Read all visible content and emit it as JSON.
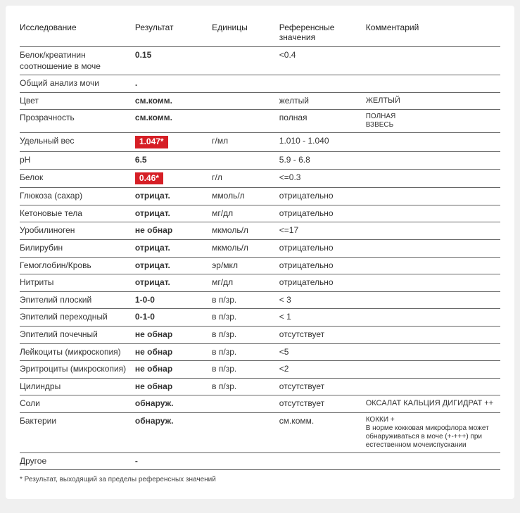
{
  "colors": {
    "highlight_bg": "#d61f26",
    "highlight_fg": "#ffffff",
    "border": "#666666"
  },
  "headers": {
    "name": "Исследование",
    "result": "Результат",
    "units": "Единицы",
    "ref": "Референсные значения",
    "comment": "Комментарий"
  },
  "footnote": "* Результат, выходящий за пределы референсных значений",
  "rows": [
    {
      "name": "Белок/креатинин соотношение в моче",
      "result": "0.15",
      "units": "",
      "ref": "<0.4",
      "comment": ""
    },
    {
      "name": "Общий анализ мочи",
      "result": ".",
      "units": "",
      "ref": "",
      "comment": ""
    },
    {
      "name": "Цвет",
      "result": "см.комм.",
      "units": "",
      "ref": "желтый",
      "comment": "ЖЕЛТЫЙ"
    },
    {
      "name": "Прозрачность",
      "result": "см.комм.",
      "units": "",
      "ref": "полная",
      "comment": "ПОЛНАЯ\nВЗВЕСЬ"
    },
    {
      "name": "Удельный вес",
      "result": "1.047*",
      "units": "г/мл",
      "ref": "1.010 - 1.040",
      "comment": "",
      "highlight": true
    },
    {
      "name": "pH",
      "result": "6.5",
      "units": "",
      "ref": "5.9 - 6.8",
      "comment": ""
    },
    {
      "name": "Белок",
      "result": "0.46*",
      "units": "г/л",
      "ref": "<=0.3",
      "comment": "",
      "highlight": true
    },
    {
      "name": "Глюкоза (сахар)",
      "result": "отрицат.",
      "units": "ммоль/л",
      "ref": "отрицательно",
      "comment": ""
    },
    {
      "name": "Кетоновые тела",
      "result": "отрицат.",
      "units": "мг/дл",
      "ref": "отрицательно",
      "comment": ""
    },
    {
      "name": "Уробилиноген",
      "result": "не обнар",
      "units": "мкмоль/л",
      "ref": "<=17",
      "comment": ""
    },
    {
      "name": "Билирубин",
      "result": "отрицат.",
      "units": "мкмоль/л",
      "ref": "отрицательно",
      "comment": ""
    },
    {
      "name": "Гемоглобин/Кровь",
      "result": "отрицат.",
      "units": "эр/мкл",
      "ref": "отрицательно",
      "comment": ""
    },
    {
      "name": "Нитриты",
      "result": "отрицат.",
      "units": "мг/дл",
      "ref": "отрицательно",
      "comment": ""
    },
    {
      "name": "Эпителий плоский",
      "result": "1-0-0",
      "units": "в п/зр.",
      "ref": "< 3",
      "comment": ""
    },
    {
      "name": "Эпителий переходный",
      "result": "0-1-0",
      "units": "в п/зр.",
      "ref": "< 1",
      "comment": ""
    },
    {
      "name": "Эпителий почечный",
      "result": "не обнар",
      "units": "в п/зр.",
      "ref": "отсутствует",
      "comment": ""
    },
    {
      "name": "Лейкоциты (микроскопия)",
      "result": "не обнар",
      "units": "в п/зр.",
      "ref": "<5",
      "comment": ""
    },
    {
      "name": "Эритроциты (микроскопия)",
      "result": "не обнар",
      "units": "в п/зр.",
      "ref": "<2",
      "comment": ""
    },
    {
      "name": "Цилиндры",
      "result": "не обнар",
      "units": "в п/зр.",
      "ref": "отсутствует",
      "comment": ""
    },
    {
      "name": "Соли",
      "result": "обнаруж.",
      "units": "",
      "ref": "отсутствует",
      "comment": "ОКСАЛАТ КАЛЬЦИЯ ДИГИДРАТ ++"
    },
    {
      "name": "Бактерии",
      "result": "обнаруж.",
      "units": "",
      "ref": "см.комм.",
      "comment": "КОККИ +\nВ норме кокковая микрофлора может обнаруживаться в моче (+-+++) при естественном мочеиспускании"
    },
    {
      "name": "Другое",
      "result": "-",
      "units": "",
      "ref": "",
      "comment": ""
    }
  ]
}
